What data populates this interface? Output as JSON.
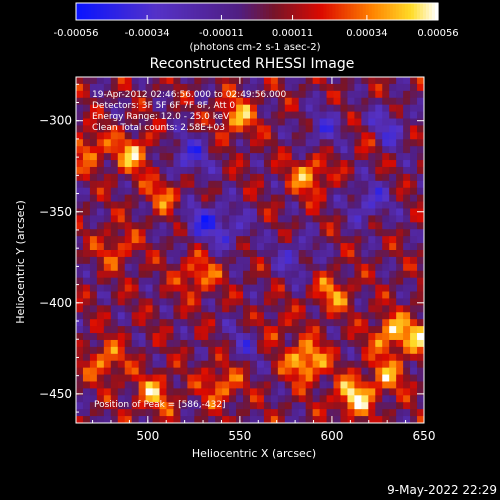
{
  "chart_data": {
    "type": "heatmap",
    "title": "Reconstructed RHESSI Image",
    "xlabel": "Heliocentric X (arcsec)",
    "ylabel": "Heliocentric Y (arcsec)",
    "xlim": [
      461,
      650
    ],
    "ylim": [
      -466,
      -276
    ],
    "xticks": [
      500,
      550,
      600,
      650
    ],
    "yticks": [
      -300,
      -350,
      -400,
      -450
    ],
    "colorbar": {
      "ticks": [
        "-0.00056",
        "-0.00034",
        "-0.00011",
        "0.00011",
        "0.00034",
        "0.00056"
      ],
      "unit_label": "(photons cm-2 s-1 asec-2)",
      "range": [
        -0.00056,
        0.00056
      ]
    },
    "info_lines": [
      "19-Apr-2012 02:46:56.000 to 02:49:56.000",
      "Detectors: 3F 5F 6F 7F 8F, Att 0",
      "Energy Range: 12.0 - 25.0 keV",
      "Clean    Total counts: 2.58E+03"
    ],
    "peak_text": "Position of Peak = [586,-432]",
    "sources": [
      {
        "x": 586,
        "y": -432,
        "amp": 1.0
      },
      {
        "x": 612,
        "y": -452,
        "amp": 0.95
      },
      {
        "x": 632,
        "y": -417,
        "amp": 0.8
      },
      {
        "x": 503,
        "y": -450,
        "amp": 0.7
      },
      {
        "x": 477,
        "y": -432,
        "amp": 0.65
      },
      {
        "x": 527,
        "y": -385,
        "amp": 0.65
      },
      {
        "x": 540,
        "y": -445,
        "amp": 0.65
      },
      {
        "x": 548,
        "y": -298,
        "amp": 0.75
      },
      {
        "x": 492,
        "y": -318,
        "amp": 0.75
      },
      {
        "x": 588,
        "y": -330,
        "amp": 0.75
      },
      {
        "x": 468,
        "y": -315,
        "amp": 0.6
      },
      {
        "x": 650,
        "y": -418,
        "amp": 0.75
      },
      {
        "x": 510,
        "y": -340,
        "amp": 0.55
      },
      {
        "x": 600,
        "y": -395,
        "amp": 0.6
      },
      {
        "x": 630,
        "y": -440,
        "amp": 0.6
      },
      {
        "x": 565,
        "y": -415,
        "amp": 0.55
      },
      {
        "x": 483,
        "y": -370,
        "amp": 0.5
      },
      {
        "x": 620,
        "y": -310,
        "amp": 0.45
      }
    ],
    "negatives": [
      {
        "x": 522,
        "y": -320,
        "amp": 0.85
      },
      {
        "x": 530,
        "y": -355,
        "amp": 0.8
      },
      {
        "x": 628,
        "y": -305,
        "amp": 0.9
      },
      {
        "x": 620,
        "y": -345,
        "amp": 0.75
      },
      {
        "x": 556,
        "y": -420,
        "amp": 0.7
      },
      {
        "x": 595,
        "y": -305,
        "amp": 0.65
      },
      {
        "x": 580,
        "y": -375,
        "amp": 0.6
      },
      {
        "x": 545,
        "y": -360,
        "amp": 0.55
      }
    ]
  },
  "footer": {
    "timestamp": "9-May-2022 22:29"
  }
}
